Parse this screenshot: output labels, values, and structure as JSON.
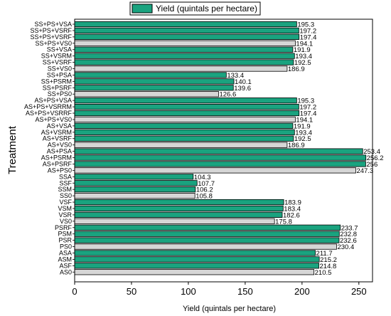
{
  "chart_data": {
    "type": "bar",
    "orientation": "horizontal",
    "title": "",
    "xlabel": "Yield (quintals per hectare)",
    "ylabel": "Treatment",
    "xlim": [
      0,
      262
    ],
    "xticks": [
      0,
      50,
      100,
      150,
      200,
      250
    ],
    "legend": {
      "label": "Yield (quintals per hectare)",
      "position": "top-center"
    },
    "colors": {
      "treatment_bar": "#1aa37f",
      "control_bar": "#d6d6d6",
      "edge": "#000000"
    },
    "categories": [
      "SS+PS+VSA",
      "SS+PS+VSRF",
      "SS+PS+VSRF",
      "SS+PS+VS0",
      "SS+VSA",
      "SS+VSRM",
      "SS+VSRF",
      "SS+VS0",
      "SS+PSA",
      "SS+PSRM",
      "SS+PSRF",
      "SS+PS0",
      "AS+PS+VSA",
      "AS+PS+VSRRM",
      "AS+PS+VSRRF",
      "AS+PS+VS0",
      "AS+VSA",
      "AS+VSRM",
      "AS+VSRF",
      "AS+VS0",
      "AS+PSA",
      "AS+PSRM",
      "AS+PSRF",
      "AS+PS0",
      "SSA",
      "SSF",
      "SSM",
      "SS0",
      "VSF",
      "VSM",
      "VSR",
      "VS0",
      "PSRF",
      "PSM",
      "PSR",
      "PS0",
      "ASA",
      "ASM",
      "ASF",
      "AS0"
    ],
    "values": [
      195.3,
      197.2,
      197.4,
      194.1,
      191.9,
      193.4,
      192.5,
      186.9,
      133.4,
      140.1,
      139.6,
      126.6,
      195.3,
      197.2,
      197.4,
      194.1,
      191.9,
      193.4,
      192.5,
      186.9,
      253.4,
      256.2,
      256,
      247.3,
      104.3,
      107.7,
      106.2,
      105.8,
      183.9,
      183.4,
      182.6,
      175.8,
      233.7,
      232.8,
      232.6,
      230.4,
      211.7,
      215.2,
      214.8,
      210.5
    ],
    "value_labels": [
      "195.3",
      "197.2",
      "197.4",
      "194.1",
      "191.9",
      "193.4",
      "192.5",
      "186.9",
      "133.4",
      "140.1",
      "139.6",
      "126.6",
      "195.3",
      "197.2",
      "197.4",
      "194.1",
      "191.9",
      "193.4",
      "192.5",
      "186.9",
      "253.4",
      "256.2",
      "256",
      "247.3",
      "104.3",
      "107.7",
      "106.2",
      "105.8",
      "183.9",
      "183.4",
      "182.6",
      "175.8",
      "233.7",
      "232.8",
      "232.6",
      "230.4",
      "211.7",
      "215.2",
      "214.8",
      "210.5"
    ],
    "is_control": [
      false,
      false,
      false,
      true,
      false,
      false,
      false,
      true,
      false,
      false,
      false,
      true,
      false,
      false,
      false,
      true,
      false,
      false,
      false,
      true,
      false,
      false,
      false,
      true,
      false,
      false,
      false,
      true,
      false,
      false,
      false,
      true,
      false,
      false,
      false,
      true,
      false,
      false,
      false,
      true
    ]
  }
}
